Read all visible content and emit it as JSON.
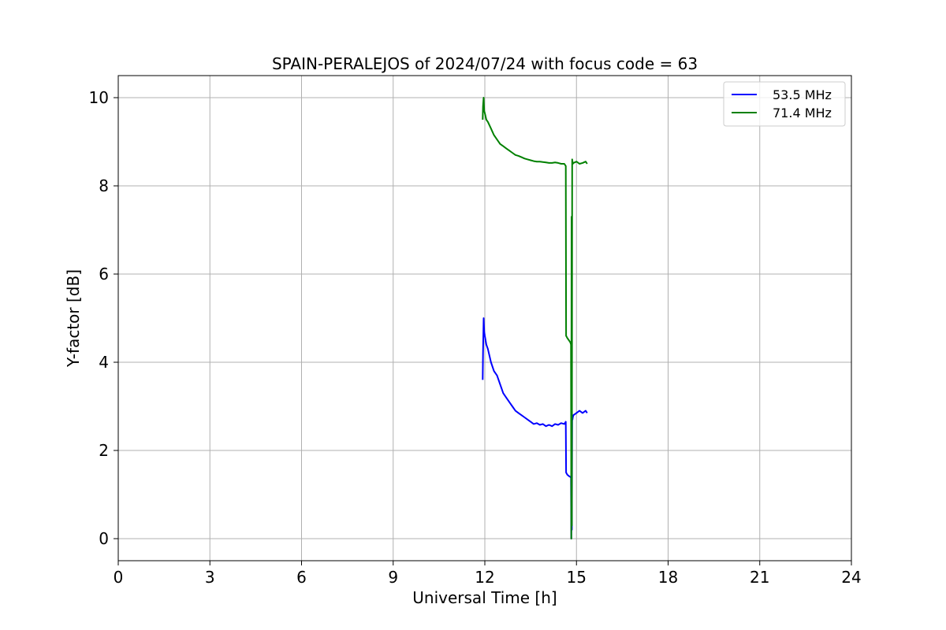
{
  "chart_data": {
    "type": "line",
    "title": "SPAIN-PERALEJOS of 2024/07/24 with focus code = 63",
    "xlabel": "Universal Time [h]",
    "ylabel": "Y-factor [dB]",
    "xlim": [
      0,
      24
    ],
    "ylim": [
      -0.5,
      10.5
    ],
    "xticks": [
      0,
      3,
      6,
      9,
      12,
      15,
      18,
      21,
      24
    ],
    "yticks": [
      0,
      2,
      4,
      6,
      8,
      10
    ],
    "grid": true,
    "legend_position": "top-right",
    "series": [
      {
        "name": "53.5 MHz",
        "color": "#0000ff",
        "x": [
          11.93,
          11.94,
          11.96,
          11.98,
          12.0,
          12.05,
          12.1,
          12.2,
          12.3,
          12.4,
          12.5,
          12.6,
          12.7,
          12.8,
          12.9,
          13.0,
          13.1,
          13.2,
          13.3,
          13.4,
          13.5,
          13.6,
          13.7,
          13.8,
          13.9,
          14.0,
          14.1,
          14.2,
          14.3,
          14.4,
          14.5,
          14.6,
          14.65,
          14.66,
          14.7,
          14.75,
          14.8,
          14.82,
          14.83,
          14.84,
          14.85,
          14.86,
          14.87,
          14.88,
          14.9,
          15.0,
          15.1,
          15.2,
          15.3,
          15.35
        ],
        "y": [
          3.6,
          4.2,
          5.0,
          4.7,
          4.6,
          4.4,
          4.3,
          4.0,
          3.8,
          3.7,
          3.5,
          3.3,
          3.2,
          3.1,
          3.0,
          2.9,
          2.85,
          2.8,
          2.75,
          2.7,
          2.65,
          2.6,
          2.62,
          2.58,
          2.6,
          2.55,
          2.58,
          2.55,
          2.6,
          2.58,
          2.62,
          2.6,
          2.65,
          1.5,
          1.45,
          1.42,
          1.4,
          1.38,
          0.0,
          2.2,
          0.2,
          2.8,
          2.7,
          2.75,
          2.8,
          2.85,
          2.9,
          2.85,
          2.9,
          2.85
        ]
      },
      {
        "name": "71.4 MHz",
        "color": "#008000",
        "x": [
          11.93,
          11.94,
          11.96,
          11.98,
          12.0,
          12.05,
          12.1,
          12.2,
          12.3,
          12.4,
          12.5,
          12.6,
          12.7,
          12.8,
          12.9,
          13.0,
          13.1,
          13.2,
          13.3,
          13.4,
          13.5,
          13.6,
          13.7,
          13.8,
          13.9,
          14.0,
          14.1,
          14.2,
          14.3,
          14.4,
          14.5,
          14.6,
          14.65,
          14.66,
          14.7,
          14.75,
          14.8,
          14.82,
          14.83,
          14.84,
          14.85,
          14.86,
          14.87,
          14.88,
          14.9,
          15.0,
          15.1,
          15.2,
          15.3,
          15.35
        ],
        "y": [
          9.5,
          9.8,
          10.0,
          9.7,
          9.65,
          9.5,
          9.45,
          9.3,
          9.15,
          9.05,
          8.95,
          8.9,
          8.85,
          8.8,
          8.75,
          8.7,
          8.68,
          8.65,
          8.62,
          8.6,
          8.58,
          8.56,
          8.55,
          8.55,
          8.54,
          8.53,
          8.52,
          8.52,
          8.53,
          8.52,
          8.5,
          8.5,
          8.45,
          4.6,
          4.55,
          4.5,
          4.45,
          4.4,
          0.0,
          7.3,
          0.3,
          8.6,
          8.55,
          8.5,
          8.52,
          8.55,
          8.5,
          8.52,
          8.55,
          8.5
        ]
      }
    ]
  }
}
